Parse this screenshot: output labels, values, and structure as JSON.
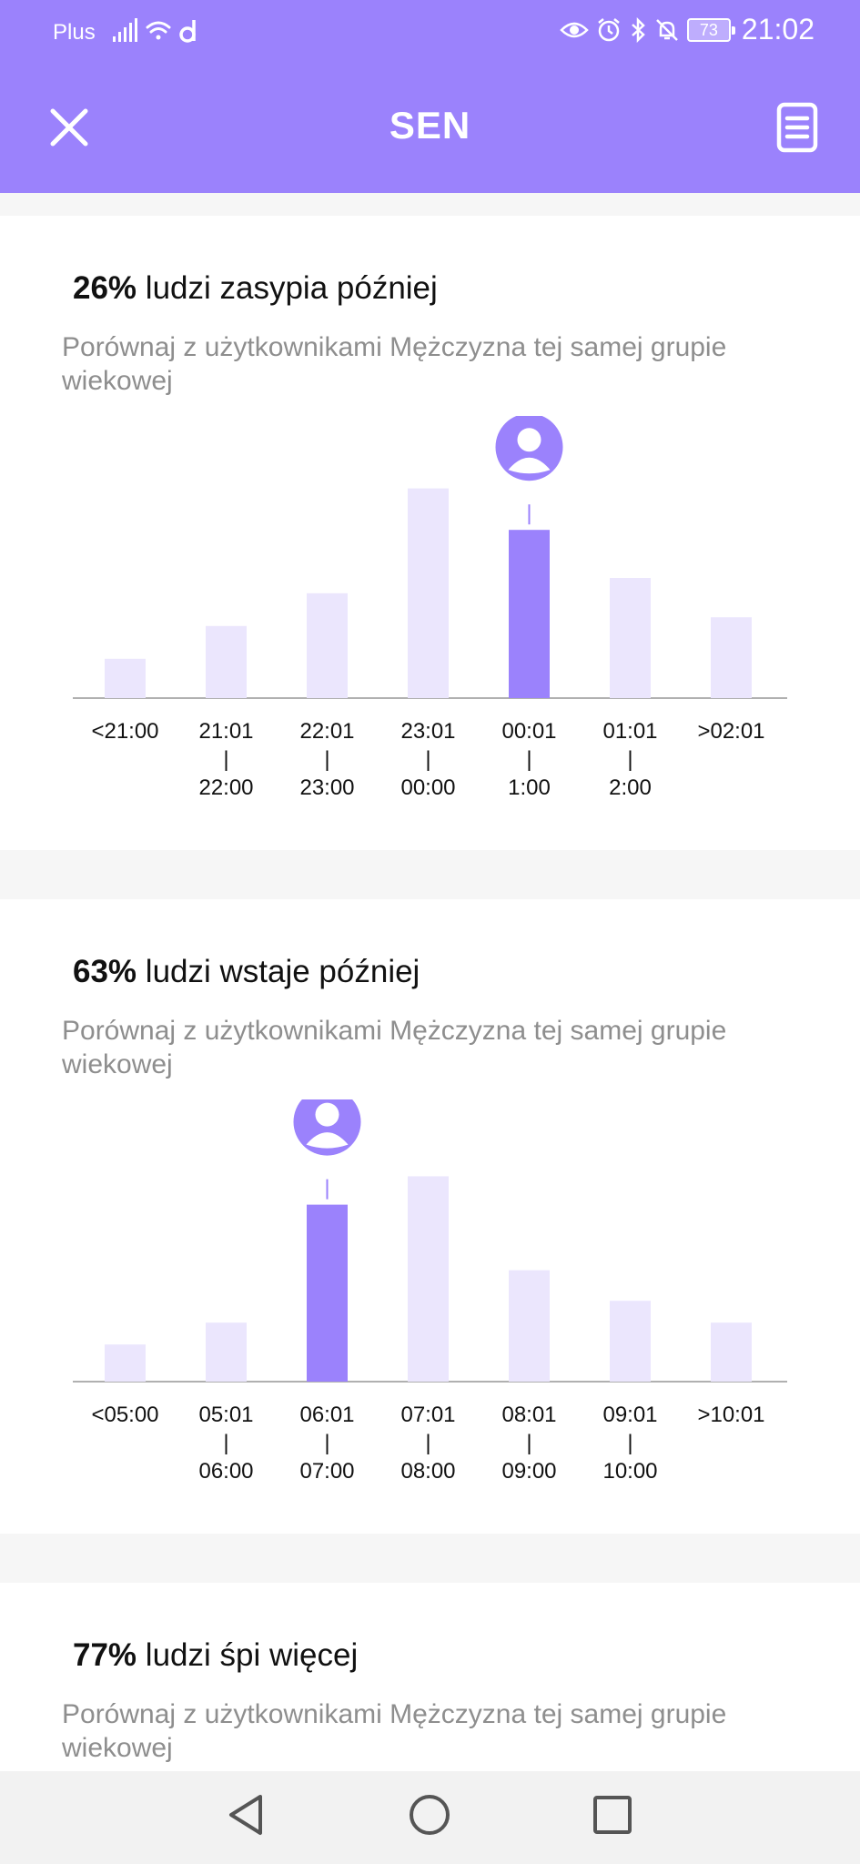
{
  "status_bar": {
    "carrier": "Plus",
    "battery": "73",
    "time": "21:02"
  },
  "header": {
    "title": "SEN",
    "bg_color": "#9b82fc"
  },
  "colors": {
    "accent": "#9b82fc",
    "bar_light": "#ebe6fd",
    "axis": "#b0b0b0"
  },
  "cards": [
    {
      "percent": "26%",
      "heading_text": " ludzi zasypia później",
      "subtitle": "Porównaj z użytkownikami Mężczyzna tej samej grupie wiekowej",
      "chart_index": 0
    },
    {
      "percent": "63%",
      "heading_text": " ludzi wstaje później",
      "subtitle": "Porównaj z użytkownikami Mężczyzna tej samej grupie wiekowej",
      "chart_index": 1
    },
    {
      "percent": "77%",
      "heading_text": " ludzi śpi więcej",
      "subtitle": "Porównaj z użytkownikami Mężczyzna tej samej grupie wiekowej"
    }
  ],
  "chart_data": [
    {
      "type": "bar",
      "categories": [
        [
          "<21:00"
        ],
        [
          "21:01",
          "|",
          "22:00"
        ],
        [
          "22:01",
          "|",
          "23:00"
        ],
        [
          "23:01",
          "|",
          "00:00"
        ],
        [
          "00:01",
          "|",
          "1:00"
        ],
        [
          "01:01",
          "|",
          "2:00"
        ],
        [
          ">02:01"
        ]
      ],
      "values": [
        18,
        33,
        48,
        96,
        77,
        55,
        37
      ],
      "highlight_index": 4,
      "ylim": [
        0,
        100
      ],
      "grid": false,
      "legend": "none"
    },
    {
      "type": "bar",
      "categories": [
        [
          "<05:00"
        ],
        [
          "05:01",
          "|",
          "06:00"
        ],
        [
          "06:01",
          "|",
          "07:00"
        ],
        [
          "07:01",
          "|",
          "08:00"
        ],
        [
          "08:01",
          "|",
          "09:00"
        ],
        [
          "09:01",
          "|",
          "10:00"
        ],
        [
          ">10:01"
        ]
      ],
      "values": [
        17,
        27,
        81,
        94,
        51,
        37,
        27
      ],
      "highlight_index": 2,
      "ylim": [
        0,
        100
      ],
      "grid": false,
      "legend": "none"
    }
  ],
  "nav": {
    "back_icon": "triangle-back-icon",
    "home_icon": "circle-home-icon",
    "recents_icon": "square-recents-icon"
  }
}
